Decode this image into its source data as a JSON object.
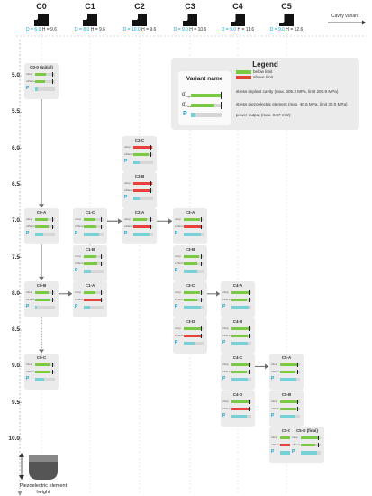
{
  "columns": [
    {
      "name": "C0",
      "d": "D = 6.0",
      "h": "H = 9.6"
    },
    {
      "name": "C1",
      "d": "D = 8.0",
      "h": "H = 9.6"
    },
    {
      "name": "C2",
      "d": "D = 10.0",
      "h": "H = 9.6"
    },
    {
      "name": "C3",
      "d": "D = 9.0",
      "h": "H = 10.6"
    },
    {
      "name": "C4",
      "d": "D = 9.0",
      "h": "H = 11.6"
    },
    {
      "name": "C5",
      "d": "D = 9.0",
      "h": "H = 12.6"
    }
  ],
  "cavity_variant_label": "Cavity variant",
  "y_ticks": [
    "5.0",
    "5.5",
    "6.0",
    "6.5",
    "7.0",
    "7.5",
    "8.0",
    "8.5",
    "9.0",
    "9.5",
    "10.0"
  ],
  "y_axis_label": "Piezoelectric element\nheight",
  "legend": {
    "title": "Legend",
    "variant_name": "Variant name",
    "below_limit": "below limit",
    "above_limit": "above limit",
    "stress_implant": "stress implant cavity  (max. 305.3 MPa,  limit 290.9 MPa)",
    "stress_piezo": "stress piezoelectric element  (max. 40.6 MPa,  limit 30.0 MPa)",
    "power_output": "power output  (max. 0.87 mW)",
    "sigma_imp": "σ",
    "sigma_imp_sub": "Imp",
    "sigma_piezo": "σ",
    "sigma_piezo_sub": "Piezo",
    "p_label": "P"
  },
  "colors": {
    "below": "#7ac943",
    "above": "#e8413b",
    "power": "#76d1d6",
    "arrow": "#6b6b6b"
  },
  "variants": [
    {
      "name": "C0-0 (initial)",
      "col": 0,
      "y": 5.0,
      "s_imp": 0.55,
      "imp_above": false,
      "s_piezo": 0.5,
      "piezo_above": false,
      "power": 0.12
    },
    {
      "name": "C0-A",
      "col": 0,
      "y": 7.0,
      "s_imp": 0.65,
      "imp_above": false,
      "s_piezo": 0.7,
      "piezo_above": false,
      "power": 0.4
    },
    {
      "name": "C0-B",
      "col": 0,
      "y": 8.0,
      "s_imp": 0.7,
      "imp_above": false,
      "s_piezo": 0.75,
      "piezo_above": false,
      "power": 0.1
    },
    {
      "name": "C0-C",
      "col": 0,
      "y": 9.0,
      "s_imp": 0.72,
      "imp_above": false,
      "s_piezo": 0.78,
      "piezo_above": false,
      "power": 0.45
    },
    {
      "name": "C1-C",
      "col": 1,
      "y": 7.0,
      "s_imp": 0.6,
      "imp_above": false,
      "s_piezo": 0.65,
      "piezo_above": false,
      "power": 0.75
    },
    {
      "name": "C1-B",
      "col": 1,
      "y": 7.5,
      "s_imp": 0.62,
      "imp_above": false,
      "s_piezo": 0.7,
      "piezo_above": false,
      "power": 0.35
    },
    {
      "name": "C1-A",
      "col": 1,
      "y": 8.0,
      "s_imp": 0.6,
      "imp_above": false,
      "s_piezo": 0.85,
      "piezo_above": true,
      "power": 0.3
    },
    {
      "name": "C2-C",
      "col": 2,
      "y": 6.0,
      "s_imp": 0.95,
      "imp_above": true,
      "s_piezo": 0.75,
      "piezo_above": false,
      "power": 0.3
    },
    {
      "name": "C2-B",
      "col": 2,
      "y": 6.5,
      "s_imp": 0.95,
      "imp_above": true,
      "s_piezo": 0.8,
      "piezo_above": true,
      "power": 0.3
    },
    {
      "name": "C2-A",
      "col": 2,
      "y": 7.0,
      "s_imp": 0.7,
      "imp_above": false,
      "s_piezo": 0.85,
      "piezo_above": true,
      "power": 0.8
    },
    {
      "name": "C3-A",
      "col": 3,
      "y": 7.0,
      "s_imp": 0.8,
      "imp_above": false,
      "s_piezo": 0.9,
      "piezo_above": true,
      "power": 0.85
    },
    {
      "name": "C3-B",
      "col": 3,
      "y": 7.5,
      "s_imp": 0.75,
      "imp_above": false,
      "s_piezo": 0.7,
      "piezo_above": false,
      "power": 0.7
    },
    {
      "name": "C3-C",
      "col": 3,
      "y": 8.0,
      "s_imp": 0.8,
      "imp_above": false,
      "s_piezo": 0.7,
      "piezo_above": false,
      "power": 0.85
    },
    {
      "name": "C3-D",
      "col": 3,
      "y": 8.5,
      "s_imp": 0.85,
      "imp_above": false,
      "s_piezo": 0.85,
      "piezo_above": true,
      "power": 0.55
    },
    {
      "name": "C4-A",
      "col": 4,
      "y": 8.0,
      "s_imp": 0.85,
      "imp_above": false,
      "s_piezo": 0.75,
      "piezo_above": false,
      "power": 0.85
    },
    {
      "name": "C4-B",
      "col": 4,
      "y": 8.5,
      "s_imp": 0.85,
      "imp_above": false,
      "s_piezo": 0.8,
      "piezo_above": false,
      "power": 0.8
    },
    {
      "name": "C4-C",
      "col": 4,
      "y": 9.0,
      "s_imp": 0.9,
      "imp_above": false,
      "s_piezo": 0.75,
      "piezo_above": false,
      "power": 0.8
    },
    {
      "name": "C4-D",
      "col": 4,
      "y": 9.5,
      "s_imp": 0.9,
      "imp_above": false,
      "s_piezo": 0.85,
      "piezo_above": true,
      "power": 0.75
    },
    {
      "name": "C5-A",
      "col": 5,
      "y": 9.0,
      "s_imp": 0.9,
      "imp_above": false,
      "s_piezo": 0.75,
      "piezo_above": false,
      "power": 0.8
    },
    {
      "name": "C5-B",
      "col": 5,
      "y": 9.5,
      "s_imp": 0.9,
      "imp_above": false,
      "s_piezo": 0.8,
      "piezo_above": false,
      "power": 0.75
    },
    {
      "name": "C5-C",
      "col": 5,
      "y": 10.0,
      "s_imp": 0.9,
      "imp_above": false,
      "s_piezo": 0.85,
      "piezo_above": true,
      "power": 0.75
    },
    {
      "name": "C5-D (final)",
      "col": 5,
      "y": 10.0,
      "col_offset": 0.85,
      "s_imp": 0.85,
      "imp_above": false,
      "s_piezo": 0.75,
      "piezo_above": false,
      "power": 0.8
    }
  ],
  "connections": [
    {
      "from": "C0-0 (initial)",
      "to": "C0-A",
      "style": "solid"
    },
    {
      "from": "C0-A",
      "to": "C0-B",
      "style": "solid"
    },
    {
      "from": "C0-B",
      "to": "C0-C",
      "style": "dotted"
    },
    {
      "from": "C0-B",
      "to": "C1-A",
      "style": "solid"
    },
    {
      "from": "C1-A",
      "to": "C1-B",
      "style": "solid"
    },
    {
      "from": "C1-B",
      "to": "C1-C",
      "style": "solid"
    },
    {
      "from": "C1-C",
      "to": "C2-A",
      "style": "dotted"
    },
    {
      "from": "C2-A",
      "to": "C2-B",
      "style": "solid"
    },
    {
      "from": "C2-B",
      "to": "C2-C",
      "style": "solid"
    },
    {
      "from": "C1-C",
      "to": "C3-A",
      "style": "solid"
    },
    {
      "from": "C3-A",
      "to": "C3-B",
      "style": "solid"
    },
    {
      "from": "C3-B",
      "to": "C3-C",
      "style": "solid"
    },
    {
      "from": "C3-C",
      "to": "C3-D",
      "style": "solid"
    },
    {
      "from": "C3-C",
      "to": "C4-A",
      "style": "solid"
    },
    {
      "from": "C4-A",
      "to": "C4-B",
      "style": "solid"
    },
    {
      "from": "C4-B",
      "to": "C4-C",
      "style": "solid"
    },
    {
      "from": "C4-C",
      "to": "C4-D",
      "style": "solid"
    },
    {
      "from": "C4-C",
      "to": "C5-A",
      "style": "solid"
    },
    {
      "from": "C5-A",
      "to": "C5-B",
      "style": "solid"
    },
    {
      "from": "C5-B",
      "to": "C5-C",
      "style": "solid"
    },
    {
      "from": "C5-C",
      "to": "C5-D (final)",
      "style": "solid"
    }
  ]
}
